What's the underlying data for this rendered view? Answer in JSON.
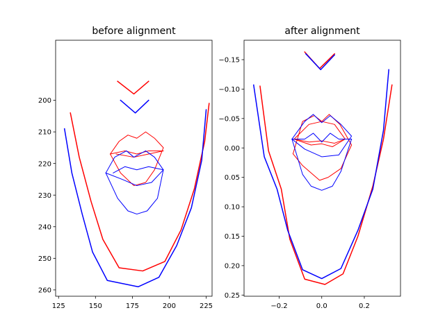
{
  "chart_data": [
    {
      "type": "line",
      "title": "before alignment",
      "xlabel": "",
      "ylabel": "",
      "xlim": [
        123,
        229
      ],
      "ylim": [
        262,
        181
      ],
      "y_inverted": true,
      "xticks": [
        125,
        150,
        175,
        200,
        225
      ],
      "yticks": [
        200,
        210,
        220,
        230,
        240,
        250,
        260
      ],
      "series": [
        {
          "color": "#ff0000",
          "width": 1.5,
          "points": [
            [
              133,
              204
            ],
            [
              139,
              218
            ],
            [
              147,
              232
            ],
            [
              155,
              244
            ],
            [
              166,
              253
            ],
            [
              182,
              254
            ],
            [
              197,
              251
            ],
            [
              208,
              241
            ],
            [
              217,
              228
            ],
            [
              224,
              213
            ],
            [
              227,
              201
            ]
          ]
        },
        {
          "color": "#ff0000",
          "width": 1.5,
          "points": [
            [
              165,
              194
            ],
            [
              176,
              198
            ],
            [
              186,
              194
            ]
          ]
        },
        {
          "color": "#ff0000",
          "width": 1,
          "points": [
            [
              160,
              217
            ],
            [
              166,
              213
            ],
            [
              172,
              211
            ],
            [
              178,
              212
            ],
            [
              184,
              210
            ],
            [
              190,
              212
            ],
            [
              196,
              215
            ],
            [
              190,
              222
            ],
            [
              184,
              226
            ],
            [
              176,
              227
            ],
            [
              167,
              223
            ],
            [
              160,
              217
            ]
          ]
        },
        {
          "color": "#ff0000",
          "width": 1,
          "points": [
            [
              160,
              217
            ],
            [
              170,
              216
            ],
            [
              178,
              217
            ],
            [
              186,
              216
            ],
            [
              196,
              216
            ]
          ]
        },
        {
          "color": "#ff0000",
          "width": 1,
          "points": [
            [
              164,
              217
            ],
            [
              176,
              218
            ],
            [
              186,
              217
            ],
            [
              196,
              216
            ]
          ]
        },
        {
          "color": "#0000ff",
          "width": 1.5,
          "points": [
            [
              129,
              209
            ],
            [
              134,
              223
            ],
            [
              141,
              236
            ],
            [
              148,
              248
            ],
            [
              158,
              257
            ],
            [
              179,
              259
            ],
            [
              193,
              256
            ],
            [
              205,
              246
            ],
            [
              215,
              234
            ],
            [
              222,
              219
            ],
            [
              225,
              203
            ]
          ]
        },
        {
          "color": "#0000ff",
          "width": 1.5,
          "points": [
            [
              167,
              200
            ],
            [
              177,
              204
            ],
            [
              186,
              200
            ]
          ]
        },
        {
          "color": "#0000ff",
          "width": 1,
          "points": [
            [
              157,
              223
            ],
            [
              163,
              218
            ],
            [
              171,
              216
            ],
            [
              176,
              218
            ],
            [
              184,
              216
            ],
            [
              190,
              218
            ],
            [
              196,
              222
            ],
            [
              188,
              226
            ],
            [
              178,
              227
            ],
            [
              168,
              225
            ],
            [
              157,
              223
            ]
          ]
        },
        {
          "color": "#0000ff",
          "width": 1,
          "points": [
            [
              157,
              223
            ],
            [
              165,
              231
            ],
            [
              172,
              235
            ],
            [
              178,
              236
            ],
            [
              185,
              235
            ],
            [
              192,
              231
            ],
            [
              196,
              222
            ]
          ]
        },
        {
          "color": "#0000ff",
          "width": 1,
          "points": [
            [
              162,
              223
            ],
            [
              170,
              221
            ],
            [
              178,
              222
            ],
            [
              186,
              221
            ],
            [
              196,
              222
            ]
          ]
        }
      ]
    },
    {
      "type": "line",
      "title": "after alignment",
      "xlabel": "",
      "ylabel": "",
      "xlim": [
        -0.365,
        0.37
      ],
      "ylim": [
        0.252,
        -0.183
      ],
      "y_inverted": true,
      "xticks": [
        -0.2,
        0.0,
        0.2
      ],
      "xtick_labels": [
        "−0.2",
        "0.0",
        "0.2"
      ],
      "yticks": [
        -0.15,
        -0.1,
        -0.05,
        0.0,
        0.05,
        0.1,
        0.15,
        0.2,
        0.25
      ],
      "ytick_labels": [
        "−0.15",
        "−0.10",
        "−0.05",
        "0.00",
        "0.05",
        "0.10",
        "0.15",
        "0.20",
        "0.25"
      ],
      "series": [
        {
          "color": "#ff0000",
          "width": 1.5,
          "points": [
            [
              -0.29,
              -0.105
            ],
            [
              -0.25,
              0.005
            ],
            [
              -0.19,
              0.07
            ],
            [
              -0.15,
              0.155
            ],
            [
              -0.08,
              0.223
            ],
            [
              0.015,
              0.232
            ],
            [
              0.1,
              0.214
            ],
            [
              0.17,
              0.15
            ],
            [
              0.24,
              0.065
            ],
            [
              0.29,
              -0.015
            ],
            [
              0.33,
              -0.107
            ]
          ]
        },
        {
          "color": "#ff0000",
          "width": 1.5,
          "points": [
            [
              -0.08,
              -0.163
            ],
            [
              -0.01,
              -0.135
            ],
            [
              0.06,
              -0.16
            ]
          ]
        },
        {
          "color": "#ff0000",
          "width": 1,
          "points": [
            [
              -0.135,
              0.01
            ],
            [
              -0.09,
              -0.045
            ],
            [
              -0.035,
              -0.055
            ],
            [
              0.0,
              -0.045
            ],
            [
              0.035,
              -0.057
            ],
            [
              0.085,
              -0.04
            ],
            [
              0.14,
              -0.005
            ],
            [
              0.09,
              0.035
            ],
            [
              0.03,
              0.05
            ],
            [
              -0.01,
              0.055
            ],
            [
              -0.09,
              0.03
            ],
            [
              -0.135,
              0.01
            ]
          ]
        },
        {
          "color": "#ff0000",
          "width": 1,
          "points": [
            [
              -0.13,
              -0.015
            ],
            [
              -0.06,
              -0.04
            ],
            [
              0.0,
              -0.045
            ],
            [
              0.06,
              -0.04
            ],
            [
              0.11,
              -0.015
            ]
          ]
        },
        {
          "color": "#ff0000",
          "width": 1,
          "points": [
            [
              -0.13,
              -0.015
            ],
            [
              -0.06,
              -0.01
            ],
            [
              0.0,
              -0.012
            ],
            [
              0.06,
              -0.008
            ],
            [
              0.11,
              -0.015
            ]
          ]
        },
        {
          "color": "#ff0000",
          "width": 1,
          "points": [
            [
              -0.13,
              -0.015
            ],
            [
              -0.05,
              -0.005
            ],
            [
              0.0,
              -0.007
            ],
            [
              0.05,
              -0.002
            ],
            [
              0.11,
              -0.015
            ]
          ]
        },
        {
          "color": "#0000ff",
          "width": 1.5,
          "points": [
            [
              -0.32,
              -0.107
            ],
            [
              -0.27,
              0.015
            ],
            [
              -0.21,
              0.07
            ],
            [
              -0.16,
              0.14
            ],
            [
              -0.09,
              0.207
            ],
            [
              0.0,
              0.222
            ],
            [
              0.09,
              0.205
            ],
            [
              0.17,
              0.14
            ],
            [
              0.24,
              0.07
            ],
            [
              0.29,
              -0.03
            ],
            [
              0.315,
              -0.133
            ]
          ]
        },
        {
          "color": "#0000ff",
          "width": 1.5,
          "points": [
            [
              -0.075,
              -0.16
            ],
            [
              -0.005,
              -0.133
            ],
            [
              0.06,
              -0.158
            ]
          ]
        },
        {
          "color": "#0000ff",
          "width": 1,
          "points": [
            [
              -0.14,
              -0.015
            ],
            [
              -0.08,
              -0.045
            ],
            [
              -0.04,
              -0.057
            ],
            [
              0.0,
              -0.043
            ],
            [
              0.04,
              -0.055
            ],
            [
              0.09,
              -0.04
            ],
            [
              0.14,
              -0.02
            ],
            [
              0.08,
              0.012
            ],
            [
              0.0,
              0.015
            ],
            [
              -0.08,
              0.002
            ],
            [
              -0.14,
              -0.015
            ]
          ]
        },
        {
          "color": "#0000ff",
          "width": 1,
          "points": [
            [
              -0.14,
              -0.015
            ],
            [
              -0.09,
              0.045
            ],
            [
              -0.05,
              0.065
            ],
            [
              0.0,
              0.072
            ],
            [
              0.05,
              0.065
            ],
            [
              0.09,
              0.04
            ],
            [
              0.14,
              -0.015
            ]
          ]
        },
        {
          "color": "#0000ff",
          "width": 1,
          "points": [
            [
              -0.14,
              -0.015
            ],
            [
              -0.08,
              -0.015
            ],
            [
              -0.04,
              -0.025
            ],
            [
              0.0,
              -0.01
            ],
            [
              0.04,
              -0.025
            ],
            [
              0.08,
              -0.015
            ],
            [
              0.14,
              -0.015
            ]
          ]
        }
      ]
    }
  ]
}
